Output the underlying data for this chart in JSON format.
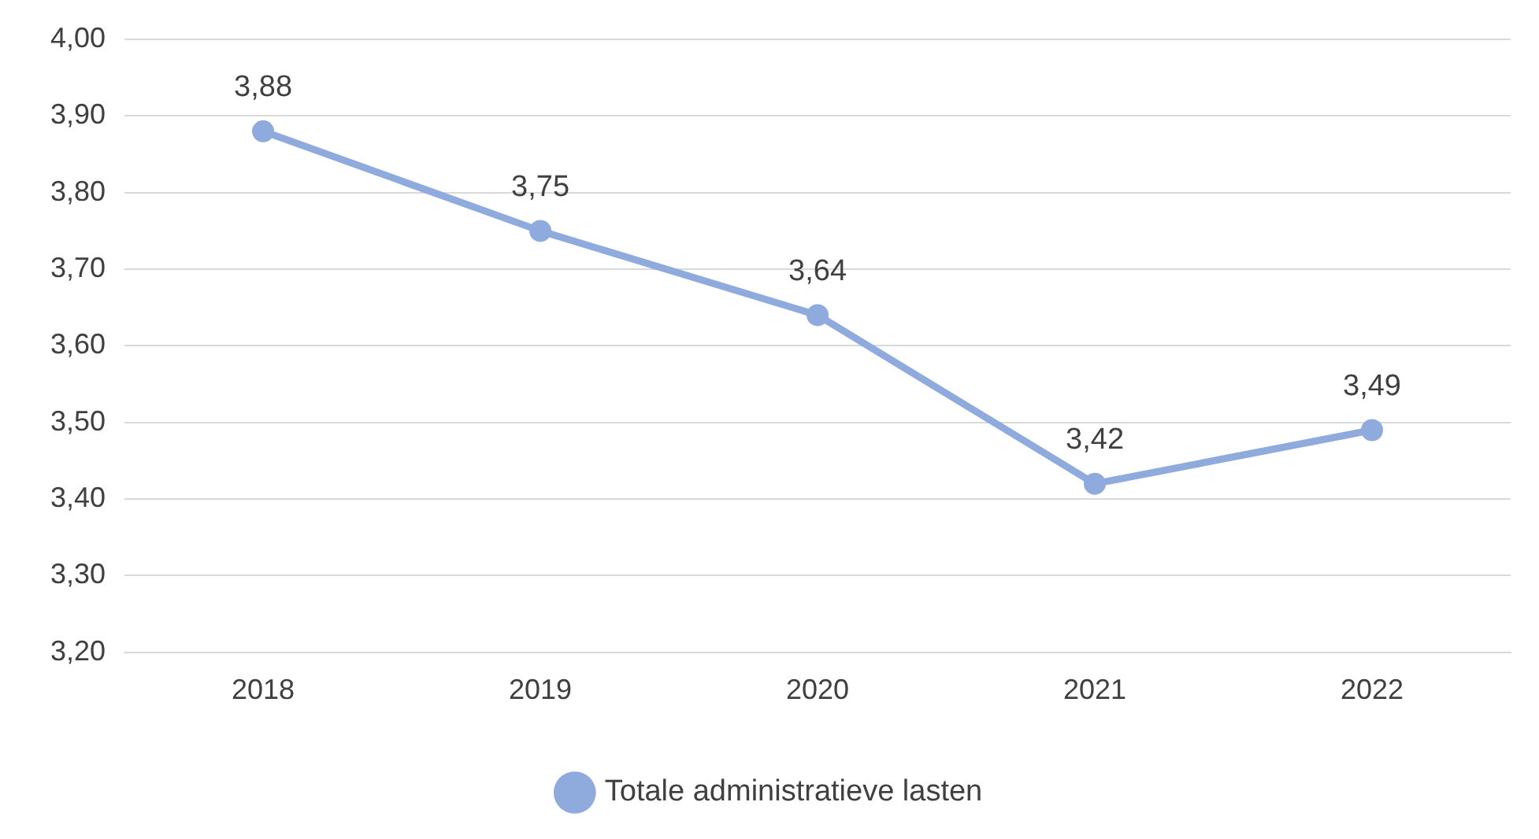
{
  "chart_data": {
    "type": "line",
    "categories": [
      "2018",
      "2019",
      "2020",
      "2021",
      "2022"
    ],
    "series": [
      {
        "name": "Totale administratieve lasten",
        "color": "#8faadc",
        "values": [
          3.88,
          3.75,
          3.64,
          3.42,
          3.49
        ],
        "value_labels": [
          "3,88",
          "3,75",
          "3,64",
          "3,42",
          "3,49"
        ]
      }
    ],
    "ylim": [
      3.2,
      4.0
    ],
    "yticks": [
      {
        "value": 3.2,
        "label": "3,20"
      },
      {
        "value": 3.3,
        "label": "3,30"
      },
      {
        "value": 3.4,
        "label": "3,40"
      },
      {
        "value": 3.5,
        "label": "3,50"
      },
      {
        "value": 3.6,
        "label": "3,60"
      },
      {
        "value": 3.7,
        "label": "3,70"
      },
      {
        "value": 3.8,
        "label": "3,80"
      },
      {
        "value": 3.9,
        "label": "3,90"
      },
      {
        "value": 4.0,
        "label": "4,00"
      }
    ],
    "grid": "y",
    "legend": "bottom",
    "marker": "circle",
    "line_style": "solid"
  }
}
